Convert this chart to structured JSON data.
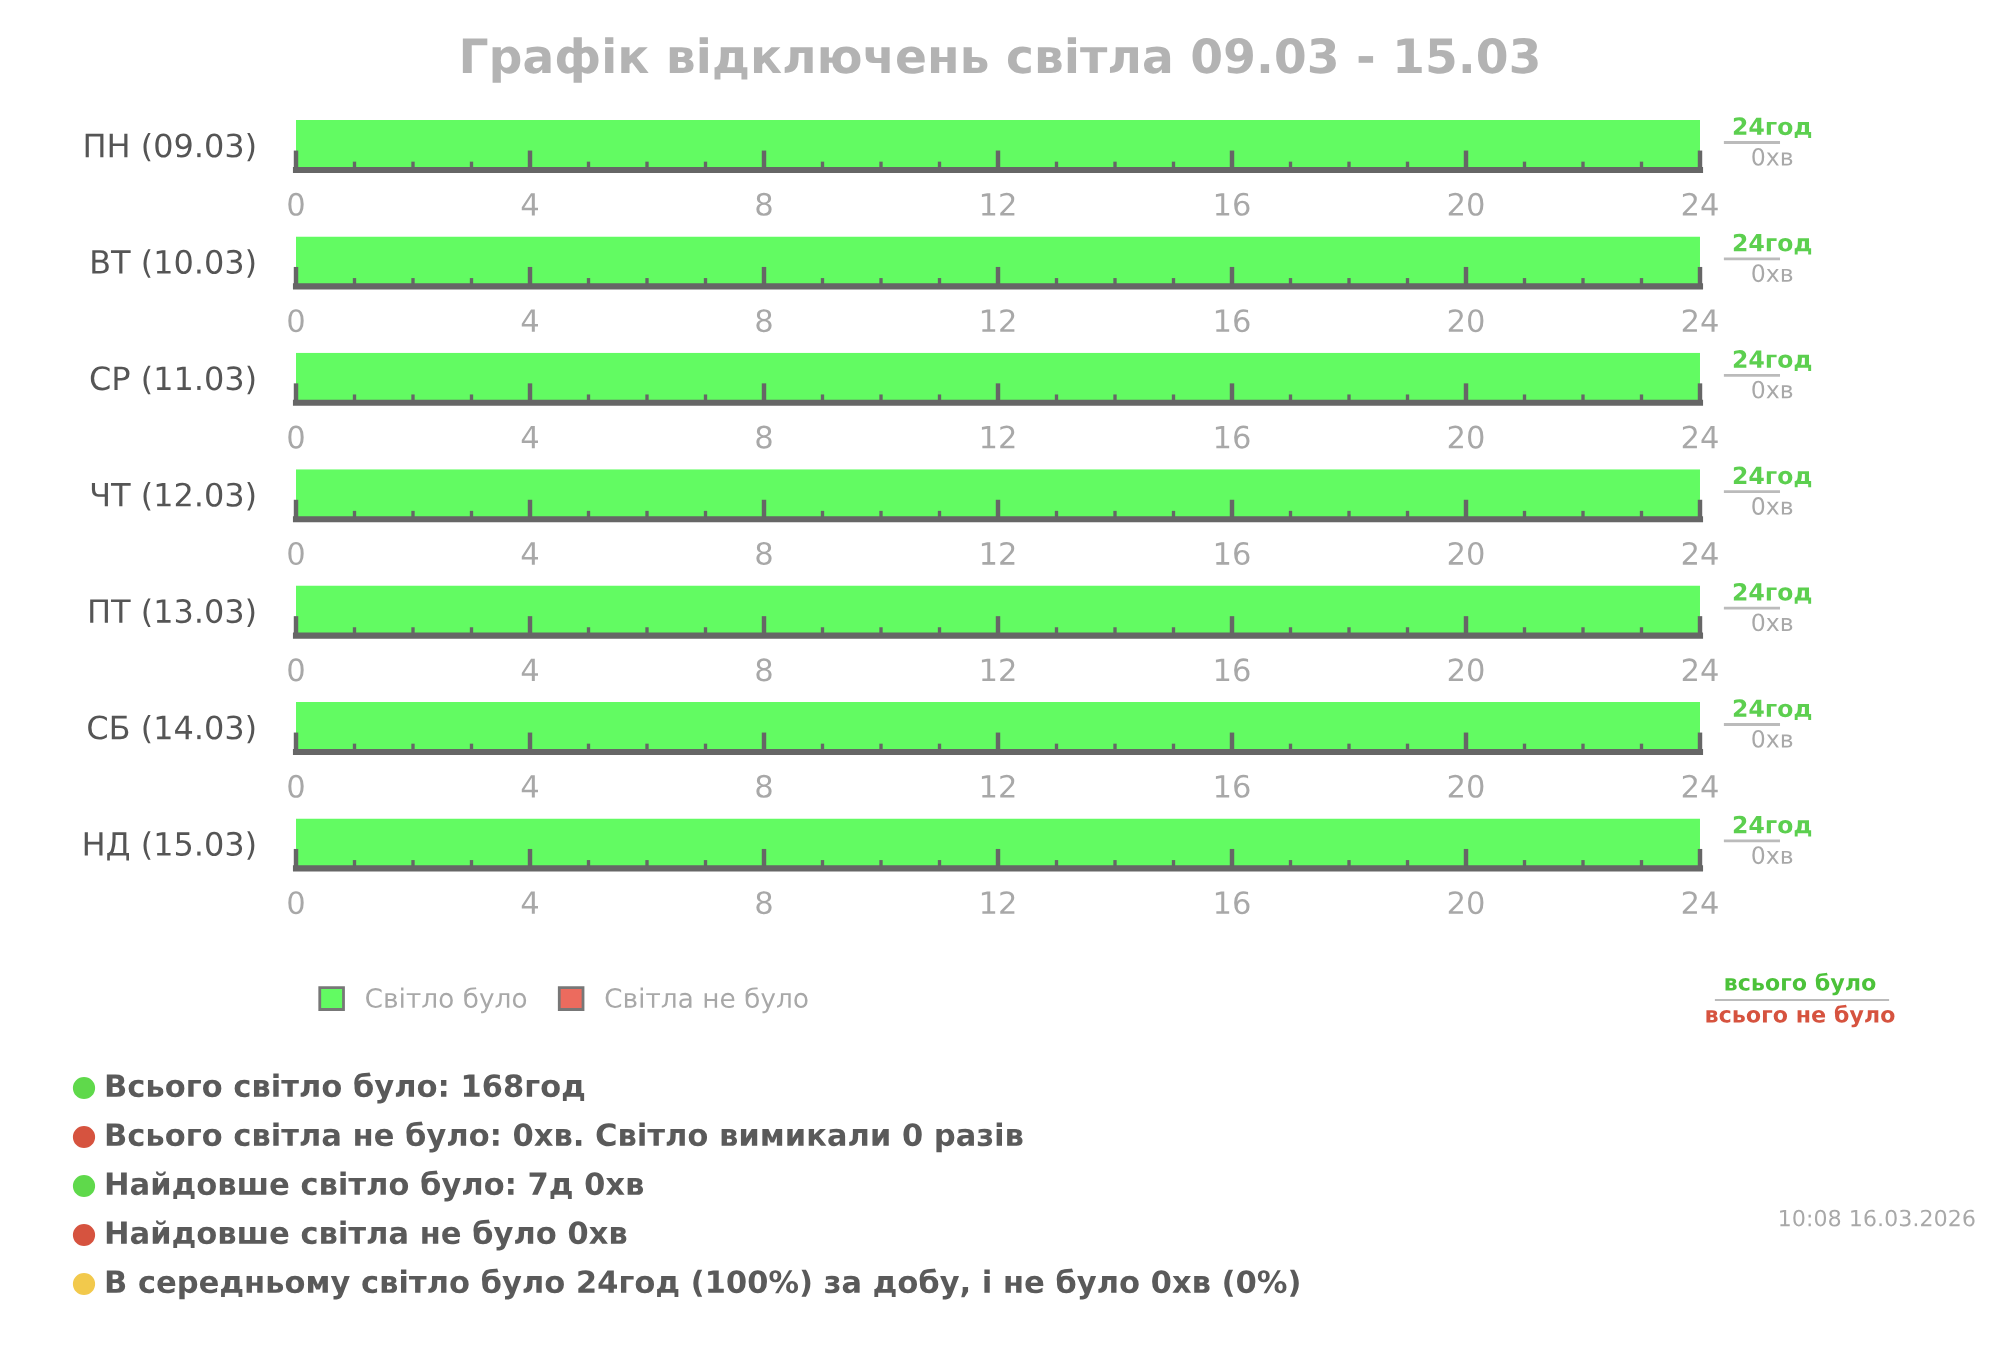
{
  "chart_data": [
    {
      "type": "bar",
      "title": "Графік відключень світла 09.03 - 15.03",
      "orientation": "horizontal",
      "stacked": true,
      "categories": [
        "ПН (09.03)"
      ],
      "xlim": [
        0,
        24
      ],
      "xticks": [
        0,
        4,
        8,
        12,
        16,
        20,
        24
      ],
      "series": [
        {
          "color": "#62fb62",
          "values": [
            24
          ],
          "value_labels": [
            "24год"
          ]
        },
        {
          "color": "#ec6b5e",
          "values": [
            0
          ],
          "value_labels": [
            "0хв"
          ]
        }
      ]
    },
    {
      "type": "bar",
      "orientation": "horizontal",
      "stacked": true,
      "categories": [
        "ВТ (10.03)"
      ],
      "xlim": [
        0,
        24
      ],
      "xticks": [
        0,
        4,
        8,
        12,
        16,
        20,
        24
      ],
      "series": [
        {
          "color": "#62fb62",
          "values": [
            24
          ],
          "value_labels": [
            "24год"
          ]
        },
        {
          "color": "#ec6b5e",
          "values": [
            0
          ],
          "value_labels": [
            "0хв"
          ]
        }
      ]
    },
    {
      "type": "bar",
      "orientation": "horizontal",
      "stacked": true,
      "categories": [
        "СР (11.03)"
      ],
      "xlim": [
        0,
        24
      ],
      "xticks": [
        0,
        4,
        8,
        12,
        16,
        20,
        24
      ],
      "series": [
        {
          "color": "#62fb62",
          "values": [
            24
          ],
          "value_labels": [
            "24год"
          ]
        },
        {
          "color": "#ec6b5e",
          "values": [
            0
          ],
          "value_labels": [
            "0хв"
          ]
        }
      ]
    },
    {
      "type": "bar",
      "orientation": "horizontal",
      "stacked": true,
      "categories": [
        "ЧТ (12.03)"
      ],
      "xlim": [
        0,
        24
      ],
      "xticks": [
        0,
        4,
        8,
        12,
        16,
        20,
        24
      ],
      "series": [
        {
          "color": "#62fb62",
          "values": [
            24
          ],
          "value_labels": [
            "24год"
          ]
        },
        {
          "color": "#ec6b5e",
          "values": [
            0
          ],
          "value_labels": [
            "0хв"
          ]
        }
      ]
    },
    {
      "type": "bar",
      "orientation": "horizontal",
      "stacked": true,
      "categories": [
        "ПТ (13.03)"
      ],
      "xlim": [
        0,
        24
      ],
      "xticks": [
        0,
        4,
        8,
        12,
        16,
        20,
        24
      ],
      "series": [
        {
          "color": "#62fb62",
          "values": [
            24
          ],
          "value_labels": [
            "24год"
          ]
        },
        {
          "color": "#ec6b5e",
          "values": [
            0
          ],
          "value_labels": [
            "0хв"
          ]
        }
      ]
    },
    {
      "type": "bar",
      "orientation": "horizontal",
      "stacked": true,
      "categories": [
        "СБ (14.03)"
      ],
      "xlim": [
        0,
        24
      ],
      "xticks": [
        0,
        4,
        8,
        12,
        16,
        20,
        24
      ],
      "series": [
        {
          "color": "#62fb62",
          "values": [
            24
          ],
          "value_labels": [
            "24год"
          ]
        },
        {
          "color": "#ec6b5e",
          "values": [
            0
          ],
          "value_labels": [
            "0хв"
          ]
        }
      ]
    },
    {
      "type": "bar",
      "orientation": "horizontal",
      "stacked": true,
      "categories": [
        "НД (15.03)"
      ],
      "xlim": [
        0,
        24
      ],
      "xticks": [
        0,
        4,
        8,
        12,
        16,
        20,
        24
      ],
      "legend": "bottom left",
      "annotations": [
        "всього було",
        "всього не було"
      ],
      "series": [
        {
          "name": "Світло було",
          "color": "#62fb62",
          "values": [
            24
          ],
          "value_labels": [
            "24год"
          ]
        },
        {
          "name": "Світла не було",
          "color": "#ec6b5e",
          "values": [
            0
          ],
          "value_labels": [
            "0хв"
          ]
        }
      ]
    },
    {
      "type": "other",
      "colors": [
        "#5fd94b",
        "#d6533f",
        "#5fd94b",
        "#d6533f",
        "#f2c94c"
      ],
      "annotations": [
        "Всього світло було: 168год",
        "Всього світла не було: 0хв. Світло вимикали 0 разів",
        "Найдовше світло було: 7д 0хв",
        "Найдовше світла не було 0хв",
        "В середньому світло було 24год (100%) за добу, і не було 0хв (0%)",
        "10:08 16.03.2026"
      ]
    }
  ]
}
